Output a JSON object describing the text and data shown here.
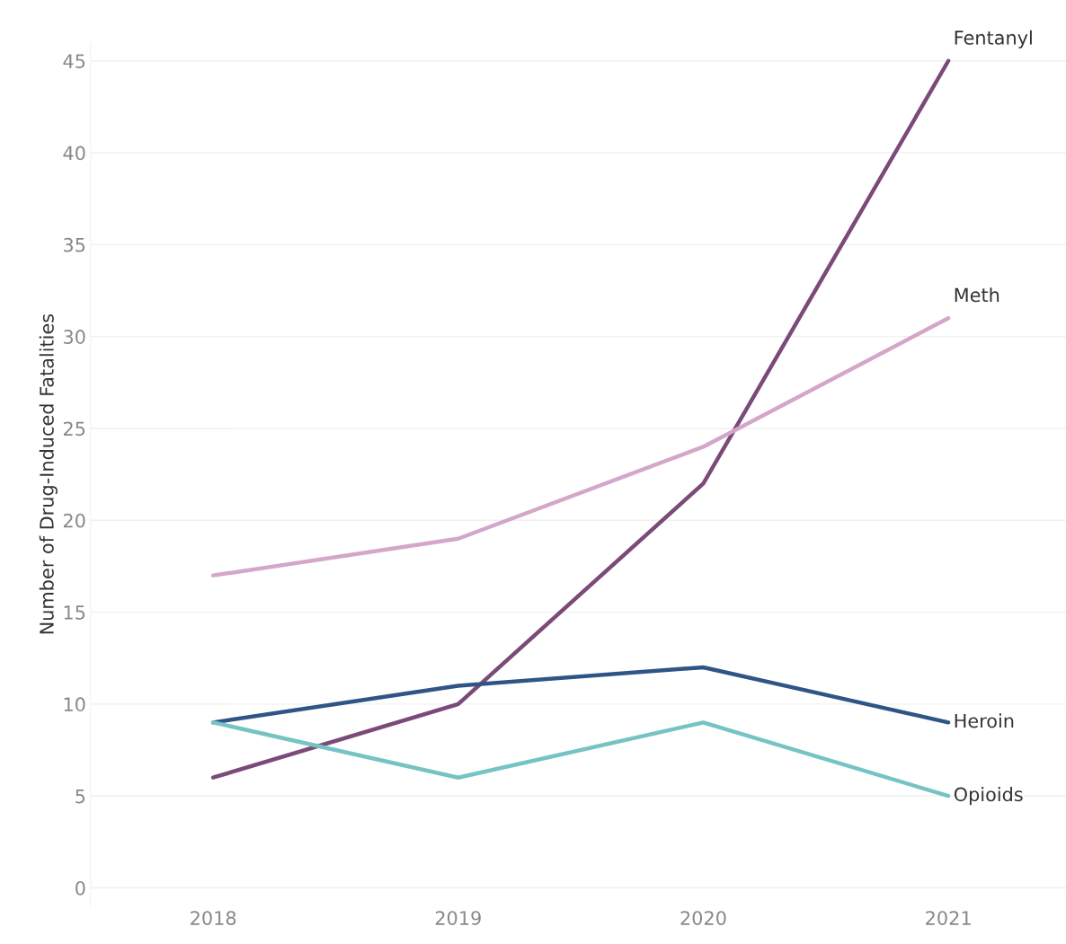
{
  "chart_data": {
    "type": "line",
    "ylabel": "Number of Drug-Induced Fatalities",
    "categories": [
      "2018",
      "2019",
      "2020",
      "2021"
    ],
    "series": [
      {
        "name": "Fentanyl",
        "color": "#7b4a78",
        "values": [
          6,
          10,
          22,
          45
        ]
      },
      {
        "name": "Meth",
        "color": "#d4a6c8",
        "values": [
          17,
          19,
          24,
          31
        ]
      },
      {
        "name": "Heroin",
        "color": "#2f5586",
        "values": [
          9,
          11,
          12,
          9
        ]
      },
      {
        "name": "Opioids",
        "color": "#76c3c4",
        "values": [
          9,
          6,
          9,
          5
        ]
      }
    ],
    "ylim": [
      -1,
      46
    ],
    "yticks": [
      0,
      5,
      10,
      15,
      20,
      25,
      30,
      35,
      40,
      45
    ],
    "grid": "y",
    "legend": false,
    "marker": "none",
    "line_style": "solid"
  }
}
